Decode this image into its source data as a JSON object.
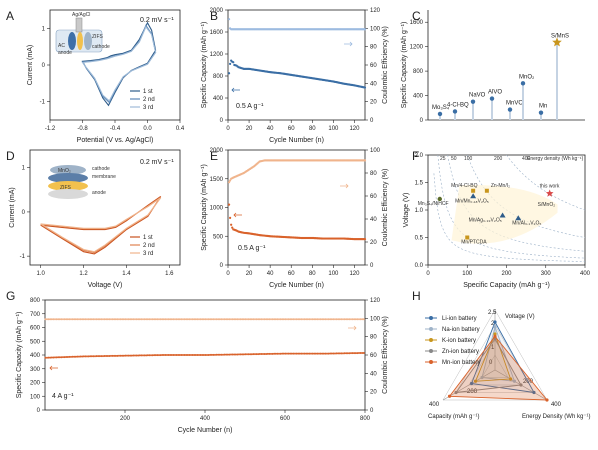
{
  "panel_labels": [
    "A",
    "B",
    "C",
    "D",
    "E",
    "F",
    "G",
    "H"
  ],
  "colors": {
    "cv1": "#2e5c8a",
    "cv2": "#5b87b7",
    "cv3": "#9fbbd8",
    "cap_blue": "#3a6ea5",
    "ce_blue": "#9dbbe0",
    "cap_orange": "#d9622b",
    "ce_orange": "#f0b48c",
    "star": "#c8961e",
    "pt_red": "#d94a4a",
    "pt_blue": "#2e5c8a",
    "pt_green": "#5a6b2a",
    "pt_gold": "#c8961e"
  },
  "chart_data": [
    {
      "id": "A",
      "type": "line",
      "xlabel": "Potential (V vs. Ag/AgCl)",
      "ylabel": "Current (mA)",
      "xlim": [
        -1.2,
        0.4
      ],
      "ylim": [
        -1.5,
        1.5
      ],
      "xticks": [
        "-1.2",
        "-0.8",
        "-0.4",
        "0.0",
        "0.4"
      ],
      "yticks": [
        "-1",
        "0",
        "1"
      ],
      "annotation": "0.2 mV s⁻¹",
      "inset_labels": [
        "Ag/AgCl",
        "ZIFS",
        "AC",
        "cathode",
        "anode"
      ],
      "series": [
        {
          "name": "1 st",
          "x": [
            -0.8,
            -0.7,
            -0.6,
            -0.5,
            -0.45,
            -0.4,
            -0.3,
            -0.2,
            -0.1,
            0.0,
            0.05,
            0.1,
            0.0,
            -0.1,
            -0.2,
            -0.3,
            -0.4,
            -0.48,
            -0.55,
            -0.65,
            -0.75,
            -0.8
          ],
          "y": [
            0.1,
            0.12,
            0.15,
            0.2,
            0.25,
            0.28,
            0.32,
            0.4,
            0.7,
            1.15,
            0.95,
            0.4,
            0.05,
            -0.05,
            -0.15,
            -0.35,
            -0.75,
            -1.1,
            -0.9,
            -0.4,
            -0.1,
            0.1
          ]
        },
        {
          "name": "2 nd",
          "x": [
            -0.8,
            -0.7,
            -0.6,
            -0.5,
            -0.4,
            -0.3,
            -0.2,
            -0.1,
            -0.02,
            0.05,
            0.1,
            0.0,
            -0.1,
            -0.2,
            -0.3,
            -0.4,
            -0.47,
            -0.55,
            -0.65,
            -0.75,
            -0.8
          ],
          "y": [
            0.08,
            0.1,
            0.13,
            0.18,
            0.25,
            0.3,
            0.38,
            0.65,
            1.08,
            0.85,
            0.35,
            0.03,
            -0.06,
            -0.16,
            -0.33,
            -0.7,
            -1.02,
            -0.85,
            -0.38,
            -0.09,
            0.08
          ]
        },
        {
          "name": "3 rd",
          "x": [
            -0.8,
            -0.7,
            -0.6,
            -0.5,
            -0.4,
            -0.3,
            -0.2,
            -0.1,
            -0.02,
            0.05,
            0.1,
            0.0,
            -0.1,
            -0.2,
            -0.3,
            -0.4,
            -0.47,
            -0.55,
            -0.65,
            -0.75,
            -0.8
          ],
          "y": [
            0.07,
            0.09,
            0.12,
            0.17,
            0.24,
            0.29,
            0.37,
            0.63,
            1.04,
            0.83,
            0.34,
            0.02,
            -0.07,
            -0.16,
            -0.32,
            -0.68,
            -0.98,
            -0.82,
            -0.36,
            -0.08,
            0.07
          ]
        }
      ]
    },
    {
      "id": "B",
      "type": "scatter",
      "xlabel": "Cycle Number (n)",
      "ylabel": "Specific Capacity (mAh g⁻¹)",
      "y2label": "Coulombic Efficiency (%)",
      "xlim": [
        0,
        130
      ],
      "ylim": [
        0,
        2000
      ],
      "y2lim": [
        0,
        120
      ],
      "xticks": [
        "0",
        "20",
        "40",
        "60",
        "80",
        "100",
        "120"
      ],
      "yticks": [
        "0",
        "400",
        "800",
        "1200",
        "1600",
        "2000"
      ],
      "y2ticks": [
        "0",
        "20",
        "40",
        "60",
        "80",
        "100",
        "120"
      ],
      "annotation": "0.5  A g⁻¹",
      "series": [
        {
          "name": "capacity",
          "x": [
            1,
            2,
            3,
            4,
            5,
            6,
            8,
            10,
            15,
            20,
            30,
            40,
            50,
            60,
            70,
            80,
            90,
            100,
            110,
            120,
            130
          ],
          "y": [
            850,
            1020,
            1080,
            1060,
            1050,
            1000,
            990,
            960,
            930,
            930,
            900,
            870,
            850,
            820,
            790,
            760,
            730,
            700,
            660,
            630,
            590
          ]
        },
        {
          "name": "coulombic efficiency",
          "x": [
            1,
            2,
            3,
            5,
            10,
            20,
            40,
            60,
            80,
            100,
            120,
            130
          ],
          "y": [
            110,
            100,
            102,
            100,
            99,
            99,
            99,
            99,
            99,
            99,
            99,
            99
          ]
        }
      ]
    },
    {
      "id": "C",
      "type": "scatter",
      "ylabel": "Specific Capacity (mAh g⁻¹)",
      "ylim": [
        0,
        1800
      ],
      "yticks": [
        "0",
        "400",
        "800",
        "1200",
        "1600"
      ],
      "points": [
        {
          "label": "Mo₃S₄",
          "value": 100
        },
        {
          "label": "4-Cl-BQ",
          "value": 140
        },
        {
          "label": "NaVO",
          "value": 300
        },
        {
          "label": "AlVO",
          "value": 350
        },
        {
          "label": "MnVO",
          "value": 170
        },
        {
          "label": "MnO₂",
          "value": 600
        },
        {
          "label": "Mn",
          "value": 120
        },
        {
          "label": "S/MnS",
          "value": 1270
        }
      ]
    },
    {
      "id": "D",
      "type": "line",
      "xlabel": "Voltage (V)",
      "ylabel": "Current (mA)",
      "xlim": [
        1.0,
        1.6
      ],
      "ylim": [
        -1.2,
        1.4
      ],
      "xticks": [
        "1.0",
        "1.2",
        "1.4",
        "1.6"
      ],
      "yticks": [
        "-1",
        "0",
        "1"
      ],
      "annotation": "0.2 mV s⁻¹",
      "inset_labels": [
        "MnO₂",
        "cathode",
        "membrane",
        "ZIFS",
        "anode"
      ],
      "series": [
        {
          "name": "1 st",
          "x": [
            1.0,
            1.1,
            1.2,
            1.3,
            1.35,
            1.4,
            1.5,
            1.56,
            1.5,
            1.4,
            1.3,
            1.25,
            1.2,
            1.1,
            1.0
          ],
          "y": [
            -0.3,
            -0.35,
            -0.4,
            -0.4,
            -0.35,
            -0.2,
            0.15,
            0.35,
            -0.1,
            -0.4,
            -0.8,
            -0.95,
            -0.9,
            -0.6,
            -0.3
          ]
        },
        {
          "name": "2 nd",
          "x": [
            1.0,
            1.1,
            1.2,
            1.3,
            1.35,
            1.4,
            1.5,
            1.56,
            1.5,
            1.4,
            1.3,
            1.25,
            1.2,
            1.1,
            1.0
          ],
          "y": [
            -0.28,
            -0.33,
            -0.38,
            -0.38,
            -0.33,
            -0.18,
            0.13,
            0.33,
            -0.08,
            -0.38,
            -0.77,
            -0.92,
            -0.87,
            -0.58,
            -0.28
          ]
        },
        {
          "name": "3 rd",
          "x": [
            1.0,
            1.1,
            1.2,
            1.3,
            1.35,
            1.4,
            1.5,
            1.56,
            1.5,
            1.4,
            1.3,
            1.25,
            1.2,
            1.1,
            1.0
          ],
          "y": [
            -0.27,
            -0.32,
            -0.37,
            -0.37,
            -0.32,
            -0.17,
            0.12,
            0.32,
            -0.07,
            -0.37,
            -0.75,
            -0.9,
            -0.85,
            -0.57,
            -0.27
          ]
        }
      ]
    },
    {
      "id": "E",
      "type": "scatter",
      "xlabel": "Cycle Number (n)",
      "ylabel": "Specific Capacity (mAh g⁻¹)",
      "y2label": "Coulombic Efficiency (%)",
      "xlim": [
        0,
        130
      ],
      "ylim": [
        0,
        2000
      ],
      "y2lim": [
        0,
        100
      ],
      "xticks": [
        "0",
        "20",
        "40",
        "60",
        "80",
        "100",
        "120"
      ],
      "yticks": [
        "0",
        "500",
        "1000",
        "1500",
        "2000"
      ],
      "y2ticks": [
        "0",
        "20",
        "40",
        "60",
        "80",
        "100"
      ],
      "annotation": "0.5  A g⁻¹",
      "series": [
        {
          "name": "capacity",
          "x": [
            1,
            2,
            3,
            4,
            5,
            8,
            10,
            15,
            20,
            30,
            40,
            50,
            60,
            70,
            80,
            90,
            100,
            110,
            120,
            130
          ],
          "y": [
            1050,
            820,
            700,
            650,
            620,
            600,
            580,
            560,
            550,
            520,
            500,
            490,
            480,
            470,
            470,
            460,
            460,
            460,
            450,
            450
          ]
        },
        {
          "name": "coulombic efficiency",
          "x": [
            1,
            3,
            5,
            10,
            15,
            20,
            25,
            30,
            35,
            40,
            60,
            80,
            100,
            120,
            130
          ],
          "y": [
            72,
            75,
            76,
            78,
            80,
            83,
            86,
            90,
            91,
            91,
            91,
            91,
            91,
            91,
            91
          ]
        }
      ]
    },
    {
      "id": "F",
      "type": "scatter",
      "xlabel": "Specific Capacity (mAh g⁻¹)",
      "ylabel": "Voltage (V)",
      "xlim": [
        0,
        400
      ],
      "ylim": [
        0,
        2
      ],
      "xticks": [
        "0",
        "100",
        "200",
        "300",
        "400"
      ],
      "yticks": [
        "0.0",
        "0.5",
        "1.0",
        "1.5",
        "2.0"
      ],
      "energy_density_label": "Energy density (Wh kg⁻¹)",
      "energy_density_ticks": [
        "25",
        "50",
        "100",
        "200",
        "400"
      ],
      "points": [
        {
          "label": "Mn/4-Cl-BQ",
          "x": 115,
          "y": 1.35
        },
        {
          "label": "Zn-Mn/I₂",
          "x": 150,
          "y": 1.35
        },
        {
          "label": "Mn/Mn₀.₁₈V₂O₅",
          "x": 115,
          "y": 1.25
        },
        {
          "label": "Mn₃S₄/NiHCF",
          "x": 30,
          "y": 1.2
        },
        {
          "label": "this work",
          "x": 310,
          "y": 1.3
        },
        {
          "label": "S/MnO₂",
          "x": 310,
          "y": 1.22
        },
        {
          "label": "Mn/Ag₀.₃₃V₂O₅",
          "x": 190,
          "y": 0.9
        },
        {
          "label": "Mn/Al₀.₁V₂O₅",
          "x": 230,
          "y": 0.85
        },
        {
          "label": "Mn/PTCDA",
          "x": 100,
          "y": 0.5
        }
      ]
    },
    {
      "id": "G",
      "type": "scatter",
      "xlabel": "Cycle Number (n)",
      "ylabel": "Specific Capacity (mAh g⁻¹)",
      "y2label": "Coulombic Efficiency (%)",
      "xlim": [
        0,
        800
      ],
      "ylim": [
        0,
        800
      ],
      "y2lim": [
        0,
        120
      ],
      "xticks": [
        "200",
        "400",
        "600",
        "800"
      ],
      "yticks": [
        "0",
        "100",
        "200",
        "300",
        "400",
        "500",
        "600",
        "700",
        "800"
      ],
      "y2ticks": [
        "0",
        "20",
        "40",
        "60",
        "80",
        "100",
        "120"
      ],
      "annotation": "4  A g⁻¹",
      "series": [
        {
          "name": "capacity",
          "x": [
            1,
            50,
            100,
            200,
            300,
            400,
            500,
            600,
            700,
            800
          ],
          "y": [
            380,
            385,
            390,
            395,
            400,
            400,
            405,
            410,
            410,
            415
          ]
        },
        {
          "name": "coulombic efficiency",
          "x": [
            1,
            100,
            200,
            300,
            400,
            500,
            600,
            700,
            800
          ],
          "y": [
            99,
            99,
            99,
            99,
            99,
            99,
            99,
            99,
            99
          ]
        }
      ]
    },
    {
      "id": "H",
      "type": "radar",
      "axes": [
        "Voltage (V)",
        "Energy Density (Wh kg⁻¹)",
        "Capacity (mAh g⁻¹)"
      ],
      "ticks": {
        "voltage": [
          "0",
          "1",
          "2",
          "2.5"
        ],
        "energy": [
          "0",
          "200",
          "400"
        ],
        "capacity": [
          "0",
          "200",
          "400"
        ]
      },
      "series": [
        {
          "name": "Li-ion battery",
          "values": [
            2.0,
            300,
            180
          ]
        },
        {
          "name": "Na-ion battery",
          "values": [
            1.8,
            150,
            100
          ]
        },
        {
          "name": "K-ion battery",
          "values": [
            1.5,
            120,
            150
          ]
        },
        {
          "name": "Zn-ion battery",
          "values": [
            1.3,
            200,
            300
          ]
        },
        {
          "name": "Mn-ion battery",
          "values": [
            1.4,
            400,
            350
          ]
        }
      ]
    }
  ]
}
